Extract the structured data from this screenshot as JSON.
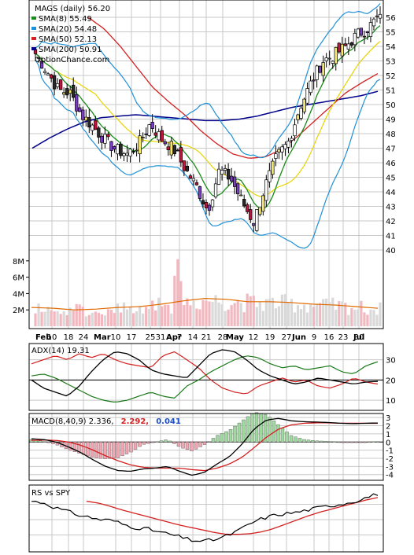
{
  "chart_data": [
    {
      "type": "candlestick",
      "legend": [
        {
          "label": "MAGS (daily) 56.20",
          "color": "#000000"
        },
        {
          "label": "SMA(8) 55.49",
          "color": "#1a8a1a"
        },
        {
          "label": "SMA(20) 54.48",
          "color": "#1e90d8"
        },
        {
          "label": "SMA(50) 52.13",
          "color": "#d42020"
        },
        {
          "label": "SMA(200) 50.91",
          "color": "#00008b"
        },
        {
          "label": "OptionChance.com",
          "color": "#000000"
        }
      ],
      "price_ticks": [
        40,
        41,
        42,
        43,
        44,
        45,
        46,
        47,
        48,
        49,
        50,
        51,
        52,
        53,
        54,
        55,
        56
      ],
      "volume_ticks": [
        "2M",
        "4M",
        "6M",
        "8M"
      ],
      "volume_tick_values": [
        2,
        4,
        6,
        8
      ],
      "month_labels": [
        "Feb",
        "Mar",
        "Apr",
        "May",
        "Jun",
        "Jul"
      ],
      "day_labels": [
        "10",
        "18",
        "24",
        "10",
        "17",
        "25",
        "31",
        "7",
        "14",
        "21",
        "28",
        "12",
        "19",
        "27",
        "9",
        "16",
        "23",
        "30"
      ],
      "close_start": 53.5,
      "close_path": [
        53.5,
        52.3,
        51.0,
        50.8,
        49.3,
        48.5,
        47.6,
        46.9,
        46.6,
        47.3,
        48.7,
        47.6,
        47.0,
        45.6,
        44.4,
        42.7,
        45.5,
        44.9,
        43.3,
        41.9,
        44.4,
        46.4,
        47.4,
        49.8,
        51.5,
        53.0,
        53.4,
        54.0,
        54.8,
        55.3,
        56.2
      ],
      "sma200_path": [
        47.0,
        47.7,
        48.3,
        48.8,
        49.1,
        49.2,
        49.3,
        49.2,
        49.1,
        49.0,
        48.9,
        48.9,
        49.0,
        49.2,
        49.5,
        49.8,
        50.0,
        50.2,
        50.4,
        50.6,
        50.91
      ],
      "sma50_path": [
        56.0,
        55.2,
        54.0,
        52.6,
        51.2,
        50.2,
        49.3,
        48.2,
        47.3,
        46.6,
        46.3,
        46.4,
        46.9,
        47.8,
        48.8,
        49.8,
        50.8,
        51.5,
        52.13
      ],
      "avg_volume_millions": 2.2,
      "avg_volume_path": [
        2.3,
        2.2,
        2.0,
        2.1,
        2.3,
        2.4,
        2.7,
        3.1,
        3.4,
        3.3,
        3.0,
        3.0,
        2.9,
        2.7,
        2.6,
        2.4,
        2.2
      ]
    },
    {
      "type": "line",
      "title": "ADX(14) 19.31",
      "ticks": [
        10,
        20,
        30
      ],
      "ylim": [
        5,
        38
      ],
      "series": [
        {
          "name": "ADX",
          "color": "#000000",
          "values": [
            20,
            16,
            14,
            12,
            17,
            24,
            30,
            34,
            33,
            30,
            25,
            23,
            22,
            21,
            27,
            33,
            35,
            34,
            30,
            25,
            22,
            20,
            18,
            19,
            21,
            20,
            19,
            18,
            19,
            19.3
          ]
        },
        {
          "name": "+DI",
          "color": "#1a7a1a",
          "values": [
            22,
            23,
            21,
            18,
            15,
            12,
            10,
            9,
            10,
            12,
            14,
            12,
            11,
            17,
            20,
            24,
            27,
            30,
            32,
            31,
            28,
            26,
            27,
            25,
            26,
            27,
            24,
            23,
            27,
            29
          ]
        },
        {
          "name": "-DI",
          "color": "#d42020",
          "values": [
            28,
            30,
            32,
            30,
            33,
            31,
            33,
            30,
            28,
            27,
            26,
            32,
            34,
            30,
            26,
            20,
            16,
            14,
            13,
            17,
            19,
            21,
            19,
            20,
            17,
            16,
            18,
            21,
            19,
            18
          ]
        }
      ]
    },
    {
      "type": "line",
      "title": "MACD(8,40,9) 2.336,",
      "signal_value": "2.292,",
      "hist_value": "0.041",
      "ticks": [
        -4,
        -3,
        -2,
        -1,
        0,
        1,
        2,
        3
      ],
      "ylim": [
        -4.7,
        3.5
      ],
      "series": [
        {
          "name": "MACD",
          "color": "#000000",
          "values": [
            0.4,
            0.3,
            0.0,
            -0.6,
            -1.3,
            -2.2,
            -3.0,
            -3.5,
            -3.6,
            -3.3,
            -3.2,
            -3.0,
            -3.6,
            -4.1,
            -3.7,
            -2.7,
            -1.8,
            -0.3,
            1.6,
            2.7,
            2.9,
            2.6,
            2.5,
            2.45,
            2.4,
            2.3,
            2.25,
            2.3,
            2.33
          ]
        },
        {
          "name": "Signal",
          "color": "#d42020",
          "values": [
            0.2,
            0.25,
            0.2,
            0.0,
            -0.4,
            -1.0,
            -1.7,
            -2.3,
            -2.8,
            -3.1,
            -3.2,
            -3.2,
            -3.2,
            -3.4,
            -3.5,
            -3.2,
            -2.7,
            -1.9,
            -0.7,
            0.6,
            1.6,
            2.1,
            2.3,
            2.35,
            2.35,
            2.3,
            2.3,
            2.3,
            2.29
          ]
        }
      ]
    },
    {
      "type": "line",
      "title": "RS vs SPY",
      "series": [
        {
          "name": "RS",
          "color": "#000000",
          "values": [
            0.8,
            0.78,
            0.7,
            0.64,
            0.58,
            0.54,
            0.5,
            0.49,
            0.42,
            0.37,
            0.35,
            0.3,
            0.26,
            0.21,
            0.16,
            0.15,
            0.18,
            0.24,
            0.33,
            0.44,
            0.52,
            0.57,
            0.6,
            0.62,
            0.66,
            0.7,
            0.73,
            0.76,
            0.8,
            0.86,
            0.92
          ]
        },
        {
          "name": "RS SMA",
          "color": "#d42020",
          "values": [
            0.8,
            0.77,
            0.72,
            0.66,
            0.61,
            0.56,
            0.51,
            0.46,
            0.41,
            0.37,
            0.33,
            0.29,
            0.26,
            0.26,
            0.27,
            0.3,
            0.35,
            0.42,
            0.49,
            0.56,
            0.62,
            0.67,
            0.72,
            0.77,
            0.82,
            0.86
          ]
        }
      ]
    }
  ]
}
